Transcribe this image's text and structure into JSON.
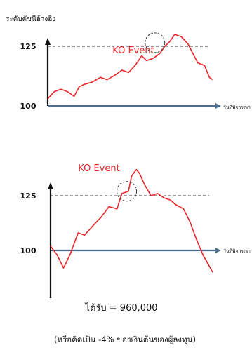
{
  "chart_data": [
    {
      "type": "line",
      "title": "ระดับดัชนีอ้างอิง",
      "xlabel": "วันที่พิจารณา",
      "ylabel": "",
      "y_ticks": [
        100,
        125
      ],
      "ylim": [
        77,
        147
      ],
      "xlim": [
        0,
        100
      ],
      "barrier": 125,
      "annotation": "KO Event",
      "ko_point": {
        "x": 65,
        "y": 126.5
      },
      "series": [
        {
          "name": "",
          "x": [
            0,
            4,
            8,
            12,
            16,
            19,
            22,
            27,
            32,
            36,
            41,
            45,
            49,
            53,
            57,
            60,
            64,
            68,
            71,
            74,
            77,
            81,
            85,
            88,
            91,
            95,
            98,
            100
          ],
          "y": [
            103,
            106,
            107,
            106,
            104,
            108,
            109,
            110,
            112,
            111,
            113,
            115,
            114,
            117,
            121,
            119,
            120,
            122,
            125,
            127,
            130,
            129,
            126,
            122,
            118,
            117,
            112,
            111
          ]
        }
      ],
      "grid": false
    },
    {
      "type": "line",
      "title": "",
      "xlabel": "วันที่พิจารณา",
      "ylabel": "",
      "y_ticks": [
        100,
        125
      ],
      "ylim": [
        77,
        147
      ],
      "xlim": [
        0,
        100
      ],
      "barrier": 125,
      "annotation": "KO Event",
      "ko_point": {
        "x": 47,
        "y": 127
      },
      "series": [
        {
          "name": "",
          "x": [
            0,
            4,
            8,
            12,
            17,
            21,
            27,
            31,
            36,
            41,
            44,
            48,
            50,
            53,
            55,
            58,
            62,
            66,
            70,
            74,
            77,
            82,
            86,
            90,
            94,
            97,
            100
          ],
          "y": [
            102,
            98,
            92,
            98,
            108,
            107,
            112,
            115,
            120,
            119,
            126,
            127,
            134,
            137,
            135,
            130,
            125,
            126,
            124,
            123,
            121,
            119,
            113,
            105,
            98,
            94,
            90
          ]
        }
      ],
      "grid": false
    }
  ],
  "caption_main": "ได้รับ = 960,000",
  "caption_sub": "(หรือคิดเป็น -4% ของเงินต้นของผู้ลงทุน)",
  "colors": {
    "line": "#e8252a",
    "axis": "#111111",
    "xaxis": "#4f6f8f",
    "text": "#111111",
    "dashed": "#333333"
  }
}
